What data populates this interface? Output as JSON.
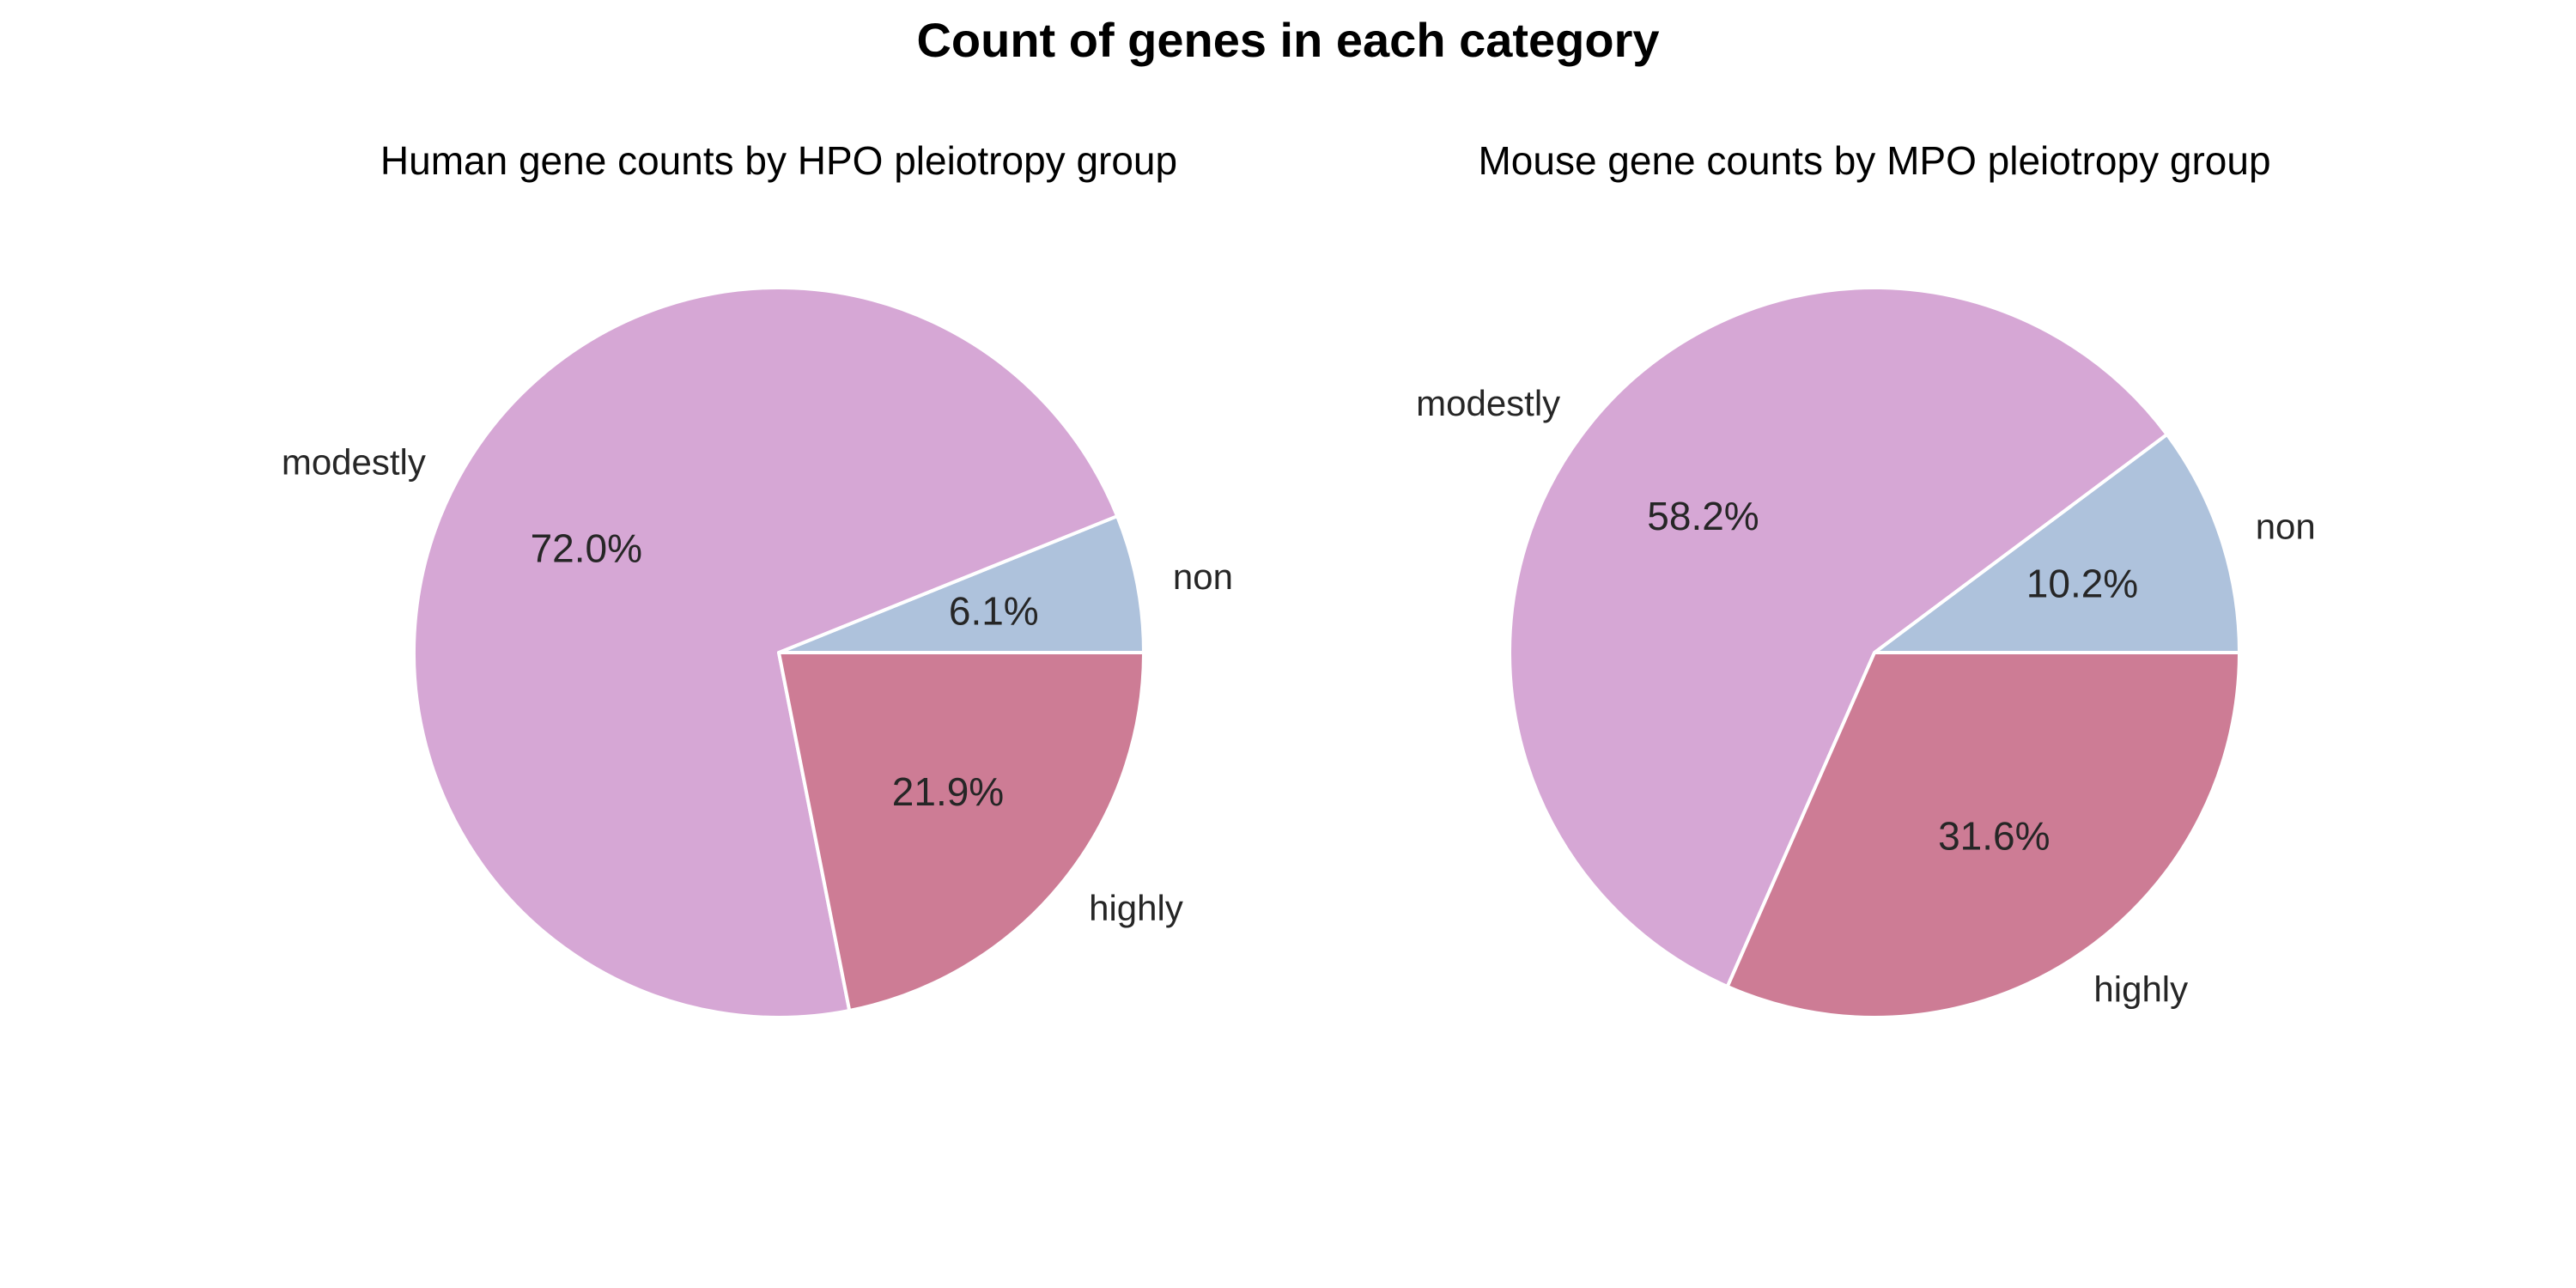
{
  "figure": {
    "title": "Count of genes in each category"
  },
  "chart_data": [
    {
      "type": "pie",
      "title": "Human gene counts by HPO pleiotropy group",
      "start_angle": 0,
      "direction": "counterclockwise",
      "slices": [
        {
          "label": "non",
          "percent": 6.1,
          "pct_text": "6.1%",
          "color": "#aec2dc"
        },
        {
          "label": "modestly",
          "percent": 72.0,
          "pct_text": "72.0%",
          "color": "#d6a7d5"
        },
        {
          "label": "highly",
          "percent": 21.9,
          "pct_text": "21.9%",
          "color": "#cd7c95"
        }
      ]
    },
    {
      "type": "pie",
      "title": "Mouse gene counts by MPO pleiotropy group",
      "start_angle": 0,
      "direction": "counterclockwise",
      "slices": [
        {
          "label": "non",
          "percent": 10.2,
          "pct_text": "10.2%",
          "color": "#aec2dc"
        },
        {
          "label": "modestly",
          "percent": 58.2,
          "pct_text": "58.2%",
          "color": "#d6a7d5"
        },
        {
          "label": "highly",
          "percent": 31.6,
          "pct_text": "31.6%",
          "color": "#cd7c95"
        }
      ]
    }
  ]
}
